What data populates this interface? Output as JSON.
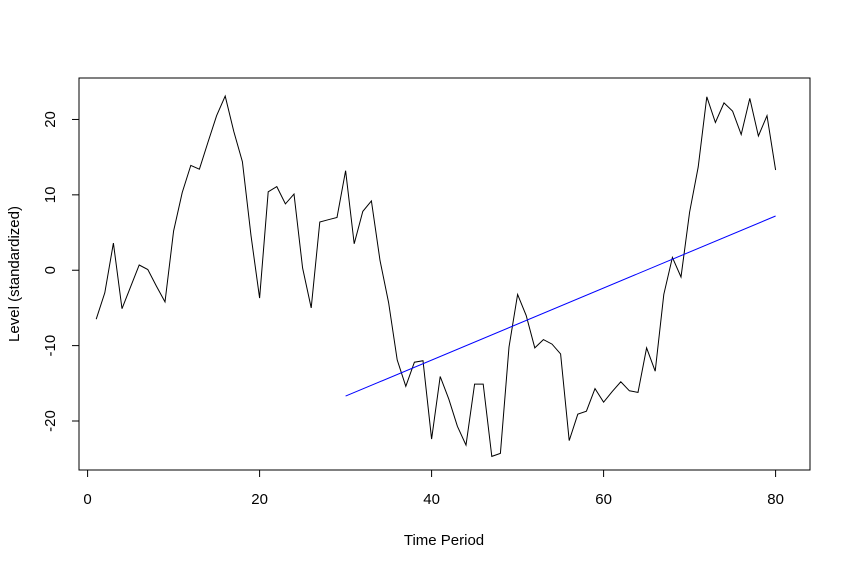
{
  "chart_data": {
    "type": "line",
    "title": "",
    "xlabel": "Time Period",
    "ylabel": "Level (standardized)",
    "xlim": [
      -1,
      84
    ],
    "ylim": [
      -26.5,
      25.5
    ],
    "xticks": [
      0,
      20,
      40,
      60,
      80
    ],
    "yticks": [
      -20,
      -10,
      0,
      10,
      20
    ],
    "grid": false,
    "series": [
      {
        "color": "#000000",
        "x": [
          1,
          2,
          3,
          4,
          5,
          6,
          7,
          8,
          9,
          10,
          11,
          12,
          13,
          14,
          15,
          16,
          17,
          18,
          19,
          20,
          21,
          22,
          23,
          24,
          25,
          26,
          27,
          28,
          29,
          30,
          31,
          32,
          33,
          34,
          35,
          36,
          37,
          38,
          39,
          40,
          41,
          42,
          43,
          44,
          45,
          46,
          47,
          48,
          49,
          50,
          51,
          52,
          53,
          54,
          55,
          56,
          57,
          58,
          59,
          60,
          61,
          62,
          63,
          64,
          65,
          66,
          67,
          68,
          69,
          70,
          71,
          72,
          73,
          74,
          75,
          76,
          77,
          78,
          79,
          80
        ],
        "y": [
          -6.5,
          -3.0,
          3.6,
          -5.1,
          -2.2,
          0.7,
          0.1,
          -2.1,
          -4.2,
          5.2,
          10.3,
          13.9,
          13.4,
          17.0,
          20.5,
          23.1,
          18.4,
          14.4,
          4.6,
          -3.7,
          10.4,
          11.1,
          8.8,
          10.1,
          0.3,
          -5.0,
          6.4,
          6.7,
          7.0,
          13.2,
          3.5,
          7.8,
          9.2,
          1.3,
          -4.3,
          -11.9,
          -15.4,
          -12.2,
          -12.0,
          -22.4,
          -14.1,
          -17.1,
          -20.7,
          -23.2,
          -15.1,
          -15.1,
          -24.7,
          -24.3,
          -10.2,
          -3.2,
          -6.0,
          -10.3,
          -9.2,
          -9.8,
          -11.1,
          -22.6,
          -19.1,
          -18.7,
          -15.7,
          -17.5,
          -16.1,
          -14.8,
          -16.0,
          -16.2,
          -10.3,
          -13.4,
          -3.2,
          1.7,
          -0.9,
          7.7,
          13.7,
          23.0,
          19.6,
          22.2,
          21.1,
          18.0,
          22.8,
          17.8,
          20.5,
          13.3
        ]
      },
      {
        "color": "#0000ff",
        "x": [
          30,
          80
        ],
        "y": [
          -16.7,
          7.2
        ]
      }
    ]
  }
}
